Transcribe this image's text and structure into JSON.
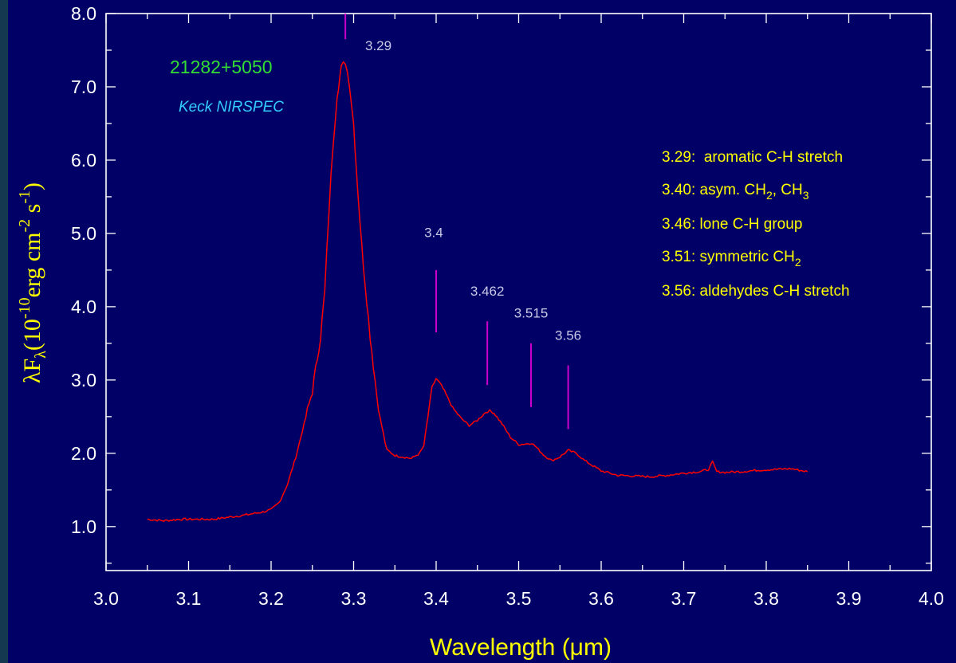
{
  "colors": {
    "background": "#000066",
    "frame": "#ffffff",
    "spectrum": "#ff0000",
    "peak_markers": "#cc00cc",
    "peak_labels": "#c8c8e6",
    "axis_titles": "#ffff00",
    "legend": "#ffff00",
    "object_name": "#33dd33",
    "instrument": "#33ccff"
  },
  "chart_data": {
    "type": "line",
    "object_name": "21282+5050",
    "instrument": "Keck NIRSPEC",
    "xlabel": "Wavelength (μm)",
    "ylabel": "λF",
    "ylabel_parts": {
      "lambda_f": "λF",
      "sub_lambda": "λ",
      "open": "(10",
      "exp_neg10": "-10",
      "erg_cm": "erg cm",
      "exp_neg2": "-2",
      "s": " s",
      "exp_neg1": "-1",
      "close": ")"
    },
    "xlim": [
      3.0,
      4.0
    ],
    "ylim": [
      0.4,
      8.0
    ],
    "x_ticks": [
      "3.0",
      "3.1",
      "3.2",
      "3.3",
      "3.4",
      "3.5",
      "3.6",
      "3.7",
      "3.8",
      "3.9",
      "4.0"
    ],
    "y_ticks": [
      "1.0",
      "2.0",
      "3.0",
      "4.0",
      "5.0",
      "6.0",
      "7.0",
      "8.0"
    ],
    "grid": false,
    "series": [
      {
        "x": [
          3.05,
          3.07,
          3.09,
          3.11,
          3.13,
          3.15,
          3.17,
          3.19,
          3.2,
          3.21,
          3.22,
          3.23,
          3.24,
          3.25,
          3.26,
          3.265,
          3.27,
          3.275,
          3.28,
          3.285,
          3.29,
          3.295,
          3.3,
          3.305,
          3.31,
          3.32,
          3.33,
          3.34,
          3.35,
          3.36,
          3.37,
          3.38,
          3.385,
          3.39,
          3.395,
          3.4,
          3.405,
          3.41,
          3.42,
          3.43,
          3.44,
          3.45,
          3.46,
          3.465,
          3.47,
          3.48,
          3.49,
          3.5,
          3.51,
          3.515,
          3.52,
          3.53,
          3.54,
          3.55,
          3.56,
          3.57,
          3.58,
          3.6,
          3.62,
          3.64,
          3.66,
          3.68,
          3.7,
          3.72,
          3.73,
          3.735,
          3.74,
          3.75,
          3.77,
          3.79,
          3.81,
          3.83,
          3.85
        ],
        "y": [
          1.1,
          1.08,
          1.1,
          1.1,
          1.1,
          1.13,
          1.16,
          1.2,
          1.23,
          1.33,
          1.58,
          1.95,
          2.4,
          2.85,
          3.6,
          4.2,
          5.3,
          6.2,
          6.9,
          7.25,
          7.35,
          7.05,
          6.5,
          5.6,
          4.8,
          3.6,
          2.6,
          2.05,
          1.97,
          1.95,
          1.93,
          2.0,
          2.1,
          2.5,
          2.9,
          3.02,
          2.95,
          2.85,
          2.62,
          2.48,
          2.38,
          2.45,
          2.56,
          2.58,
          2.55,
          2.4,
          2.22,
          2.12,
          2.13,
          2.14,
          2.1,
          1.98,
          1.9,
          1.95,
          2.04,
          2.0,
          1.9,
          1.76,
          1.7,
          1.69,
          1.68,
          1.7,
          1.73,
          1.75,
          1.78,
          1.88,
          1.75,
          1.74,
          1.75,
          1.77,
          1.78,
          1.79,
          1.75
        ]
      }
    ],
    "peak_markers": [
      {
        "label": "3.29",
        "x": 3.29,
        "y_bottom": 7.65,
        "y_top": 8.0,
        "label_x": 3.33,
        "label_y": 7.5
      },
      {
        "label": "3.4",
        "x": 3.4,
        "y_bottom": 3.65,
        "y_top": 4.5,
        "label_x": 3.397,
        "label_y": 4.95
      },
      {
        "label": "3.462",
        "x": 3.462,
        "y_bottom": 2.93,
        "y_top": 3.8,
        "label_x": 3.462,
        "label_y": 4.15
      },
      {
        "label": "3.515",
        "x": 3.515,
        "y_bottom": 2.63,
        "y_top": 3.5,
        "label_x": 3.515,
        "label_y": 3.85
      },
      {
        "label": "3.56",
        "x": 3.56,
        "y_bottom": 2.33,
        "y_top": 3.2,
        "label_x": 3.56,
        "label_y": 3.55
      }
    ],
    "legend": [
      {
        "main": "3.29:  aromatic C-H stretch"
      },
      {
        "main": "3.40: asym. CH",
        "sub1": "2",
        "mid": ", CH",
        "sub2": "3"
      },
      {
        "main": "3.46: lone C-H group"
      },
      {
        "main": "3.51: symmetric CH",
        "sub1": "2"
      },
      {
        "main": "3.56: aldehydes C-H stretch"
      }
    ]
  }
}
